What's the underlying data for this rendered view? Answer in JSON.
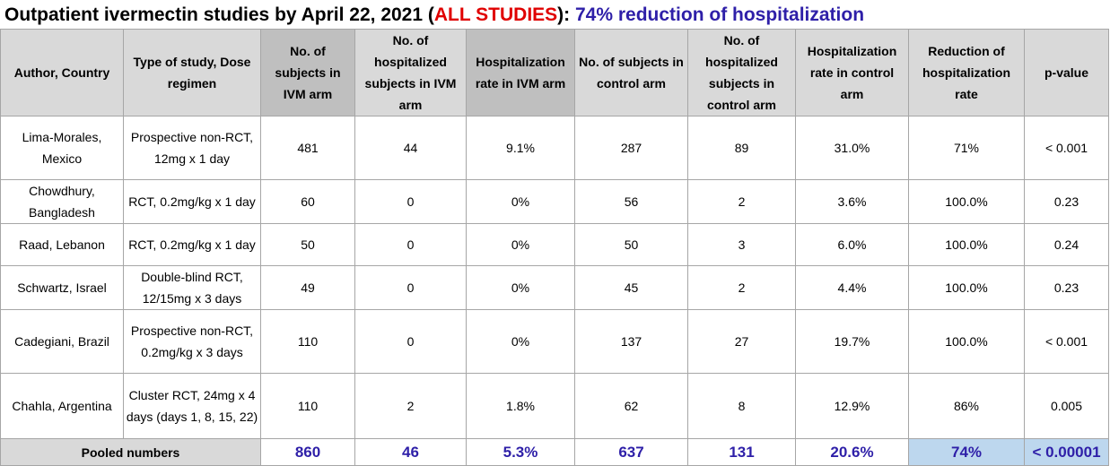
{
  "title": {
    "prefix": "Outpatient ivermectin studies by April 22, 2021 (",
    "highlight": "ALL STUDIES",
    "middle": "): ",
    "conclusion": "74% reduction of hospitalization"
  },
  "colors": {
    "title_red": "#e00000",
    "title_blue": "#2e1fa8",
    "header_gray": "#bfbfbf",
    "header_lightgray": "#d9d9d9",
    "highlight_blue": "#bdd7ee"
  },
  "headers": [
    "Author, Country",
    "Type of study, Dose regimen",
    "No. of subjects in IVM arm",
    "No. of hospitalized subjects in IVM arm",
    "Hospitalization rate in IVM arm",
    "No. of subjects in control arm",
    "No. of hospitalized subjects in control arm",
    "Hospitalization rate in control arm",
    "Reduction of hospitalization rate",
    "p-value"
  ],
  "rows": [
    [
      "Lima-Morales, Mexico",
      "Prospective non-RCT, 12mg x 1 day",
      "481",
      "44",
      "9.1%",
      "287",
      "89",
      "31.0%",
      "71%",
      "< 0.001"
    ],
    [
      "Chowdhury, Bangladesh",
      "RCT, 0.2mg/kg x 1 day",
      "60",
      "0",
      "0%",
      "56",
      "2",
      "3.6%",
      "100.0%",
      "0.23"
    ],
    [
      "Raad, Lebanon",
      "RCT, 0.2mg/kg x 1 day",
      "50",
      "0",
      "0%",
      "50",
      "3",
      "6.0%",
      "100.0%",
      "0.24"
    ],
    [
      "Schwartz, Israel",
      "Double-blind RCT, 12/15mg x 3 days",
      "49",
      "0",
      "0%",
      "45",
      "2",
      "4.4%",
      "100.0%",
      "0.23"
    ],
    [
      "Cadegiani, Brazil",
      "Prospective non-RCT, 0.2mg/kg x 3 days",
      "110",
      "0",
      "0%",
      "137",
      "27",
      "19.7%",
      "100.0%",
      "< 0.001"
    ],
    [
      "Chahla, Argentina",
      "Cluster RCT, 24mg x 4 days (days 1, 8, 15, 22)",
      "110",
      "2",
      "1.8%",
      "62",
      "8",
      "12.9%",
      "86%",
      "0.005"
    ]
  ],
  "pooled": {
    "label": "Pooled numbers",
    "ivm_subjects": "860",
    "ivm_hospitalized": "46",
    "ivm_rate": "5.3%",
    "control_subjects": "637",
    "control_hospitalized": "131",
    "control_rate": "20.6%",
    "reduction": "74%",
    "p_value": "< 0.00001"
  }
}
